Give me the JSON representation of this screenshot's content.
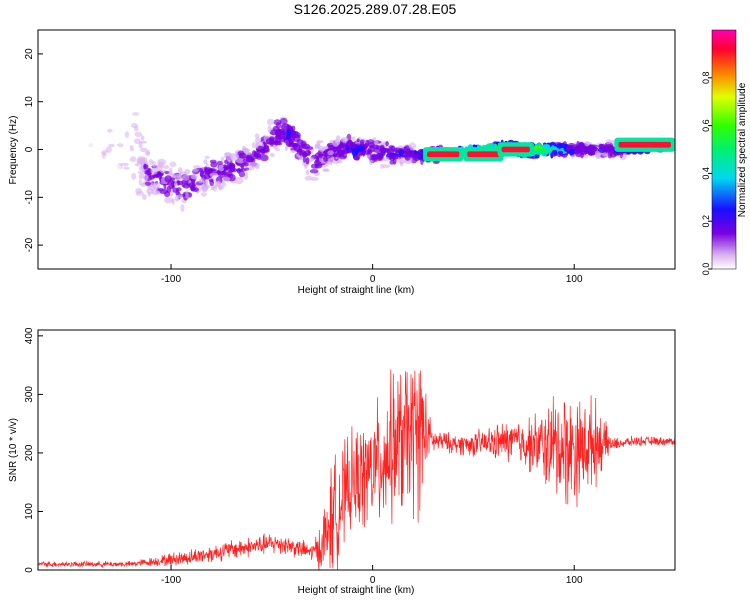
{
  "title": "S126.2025.289.07.28.E05",
  "colors": {
    "axis": "#000000",
    "snr_line": "#ff2020",
    "background": "#ffffff"
  },
  "chart_data": [
    {
      "type": "heatmap",
      "panel": "spectrogram",
      "xlabel": "Height of straight line (km)",
      "ylabel": "Frequency (Hz)",
      "xlim": [
        -166,
        150
      ],
      "ylim": [
        -25,
        25
      ],
      "xticks": [
        -100,
        0,
        100
      ],
      "yticks": [
        -20,
        -10,
        0,
        10,
        20
      ],
      "colorbar": {
        "label": "Normalized spectral amplitude",
        "range": [
          0,
          1
        ],
        "ticks": [
          0.0,
          0.2,
          0.4,
          0.6,
          0.8
        ],
        "colormap": "rainbow-white-violet-blue-cyan-green-yellow-red-magenta"
      },
      "ridge": {
        "x": [
          -166,
          -120,
          -110,
          -95,
          -80,
          -70,
          -60,
          -50,
          -45,
          -40,
          -30,
          -20,
          -10,
          0,
          10,
          20,
          40,
          60,
          80,
          100,
          120,
          150
        ],
        "center_hz": [
          0,
          0,
          -6,
          -8,
          -5,
          -4,
          -2,
          2,
          4,
          3,
          -3,
          0,
          0,
          0,
          -1,
          -1,
          -1,
          0,
          0,
          0,
          0,
          1
        ],
        "spread_hz": [
          22,
          20,
          5,
          6,
          5,
          5,
          5,
          5,
          5,
          5,
          5,
          4,
          4,
          4,
          3,
          2,
          1.5,
          1.5,
          2,
          2,
          2,
          1
        ],
        "peak_amplitude": [
          0.05,
          0.08,
          0.25,
          0.25,
          0.25,
          0.25,
          0.25,
          0.25,
          0.3,
          0.3,
          0.25,
          0.25,
          0.3,
          0.3,
          0.3,
          0.3,
          0.9,
          0.9,
          0.9,
          0.3,
          0.3,
          0.9
        ]
      }
    },
    {
      "type": "line",
      "panel": "snr",
      "xlabel": "Height of straight line (km)",
      "ylabel": "SNR (10 * v/v)",
      "xlim": [
        -166,
        150
      ],
      "ylim": [
        0,
        410
      ],
      "xticks": [
        -100,
        0,
        100
      ],
      "yticks": [
        0,
        100,
        200,
        300,
        400
      ],
      "series": [
        {
          "name": "SNR",
          "x": [
            -166,
            -140,
            -120,
            -107,
            -100,
            -90,
            -80,
            -70,
            -60,
            -50,
            -45,
            -40,
            -30,
            -25,
            -20,
            -15,
            -10,
            -5,
            0,
            5,
            10,
            15,
            20,
            22,
            25,
            27,
            30,
            35,
            40,
            50,
            60,
            70,
            80,
            85,
            90,
            95,
            100,
            105,
            110,
            118,
            120,
            130,
            150
          ],
          "center": [
            10,
            10,
            10,
            15,
            18,
            22,
            28,
            35,
            40,
            45,
            45,
            40,
            30,
            40,
            90,
            120,
            150,
            160,
            170,
            190,
            210,
            220,
            230,
            235,
            240,
            230,
            220,
            220,
            215,
            215,
            218,
            220,
            215,
            210,
            210,
            210,
            205,
            210,
            220,
            215,
            215,
            220,
            220
          ],
          "spread": [
            6,
            6,
            6,
            10,
            14,
            16,
            18,
            20,
            20,
            22,
            22,
            20,
            18,
            60,
            120,
            110,
            100,
            110,
            120,
            140,
            150,
            160,
            170,
            170,
            160,
            60,
            25,
            20,
            20,
            25,
            35,
            45,
            60,
            80,
            110,
            120,
            110,
            100,
            90,
            20,
            12,
            10,
            8
          ]
        }
      ]
    }
  ]
}
